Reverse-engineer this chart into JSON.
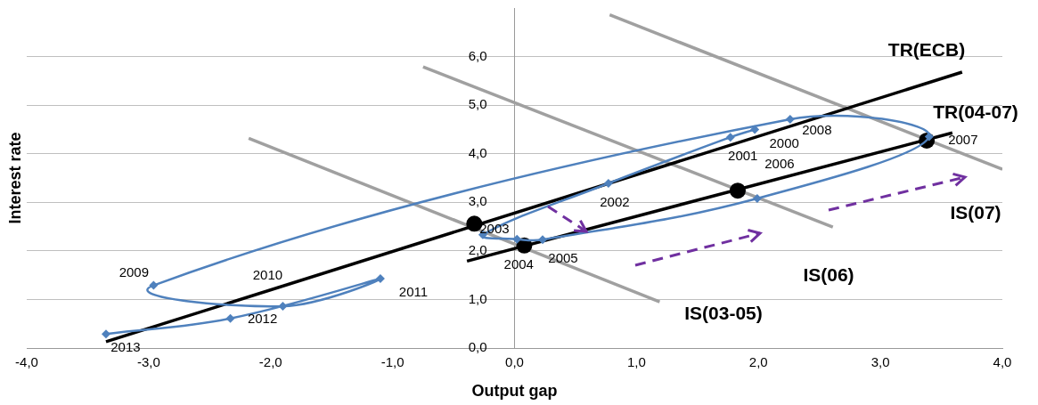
{
  "chart_data": {
    "type": "line",
    "xlabel": "Output gap",
    "ylabel": "Interest rate",
    "xlim": [
      -4,
      4
    ],
    "ylim": [
      0,
      7
    ],
    "xticks": [
      {
        "value": -4,
        "label": "-4,0"
      },
      {
        "value": -3,
        "label": "-3,0"
      },
      {
        "value": -2,
        "label": "-2,0"
      },
      {
        "value": -1,
        "label": "-1,0"
      },
      {
        "value": 0,
        "label": "0,0"
      },
      {
        "value": 1,
        "label": "1,0"
      },
      {
        "value": 2,
        "label": "2,0"
      },
      {
        "value": 3,
        "label": "3,0"
      },
      {
        "value": 4,
        "label": "4,0"
      }
    ],
    "yticks": [
      {
        "value": 0,
        "label": "0,0"
      },
      {
        "value": 1,
        "label": "1,0"
      },
      {
        "value": 2,
        "label": "2,0"
      },
      {
        "value": 3,
        "label": "3,0"
      },
      {
        "value": 4,
        "label": "4,0"
      },
      {
        "value": 5,
        "label": "5,0"
      },
      {
        "value": 6,
        "label": "6,0"
      }
    ],
    "grid": "y",
    "legend": false,
    "series": [
      {
        "color": "#4f81bd",
        "marker": "diamond",
        "x": [
          1.97,
          1.77,
          0.77,
          -0.26,
          0.02,
          0.23,
          1.99,
          3.4,
          2.26,
          -2.96,
          -1.9,
          -1.1,
          -2.33,
          -3.35
        ],
        "values": [
          4.5,
          4.34,
          3.39,
          2.33,
          2.24,
          2.23,
          3.08,
          4.35,
          4.71,
          1.29,
          0.86,
          1.43,
          0.61,
          0.29
        ]
      },
      {
        "color": "#000000",
        "marker": "none",
        "x": [
          -3.35,
          3.67
        ],
        "values": [
          0.13,
          5.68
        ]
      },
      {
        "color": "#000000",
        "marker": "none",
        "x": [
          -0.39,
          3.59
        ],
        "values": [
          1.79,
          4.43
        ]
      },
      {
        "color": "#a0a0a0",
        "marker": "none",
        "x": [
          -2.18,
          1.19
        ],
        "values": [
          4.32,
          0.95
        ]
      },
      {
        "color": "#a0a0a0",
        "marker": "none",
        "x": [
          -0.75,
          2.61
        ],
        "values": [
          5.79,
          2.49
        ]
      },
      {
        "color": "#a0a0a0",
        "marker": "none",
        "x": [
          0.78,
          4.0
        ],
        "values": [
          6.86,
          3.68
        ]
      },
      {
        "type": "scatter",
        "color": "#000000",
        "marker": "circle",
        "x": [
          -0.33,
          0.08,
          1.83,
          3.38
        ],
        "values": [
          2.56,
          2.11,
          3.24,
          4.27
        ]
      }
    ],
    "annotations": [
      {
        "text": "2000",
        "x": 1.97,
        "y": 4.5
      },
      {
        "text": "2001",
        "x": 1.77,
        "y": 4.34
      },
      {
        "text": "2002",
        "x": 0.77,
        "y": 3.39
      },
      {
        "text": "2003",
        "x": -0.26,
        "y": 2.33
      },
      {
        "text": "2004",
        "x": 0.02,
        "y": 2.24
      },
      {
        "text": "2005",
        "x": 0.23,
        "y": 2.23
      },
      {
        "text": "2006",
        "x": 1.99,
        "y": 3.08
      },
      {
        "text": "2007",
        "x": 3.4,
        "y": 4.35
      },
      {
        "text": "2008",
        "x": 2.26,
        "y": 4.71
      },
      {
        "text": "2009",
        "x": -2.96,
        "y": 1.29
      },
      {
        "text": "2010",
        "x": -1.9,
        "y": 0.86
      },
      {
        "text": "2011",
        "x": -1.1,
        "y": 1.43
      },
      {
        "text": "2012",
        "x": -2.33,
        "y": 0.61
      },
      {
        "text": "2013",
        "x": -3.35,
        "y": 0.29
      },
      "TR(ECB)",
      "TR(04-07)",
      "IS(07)",
      "IS(06)",
      "IS(03-05)"
    ]
  }
}
